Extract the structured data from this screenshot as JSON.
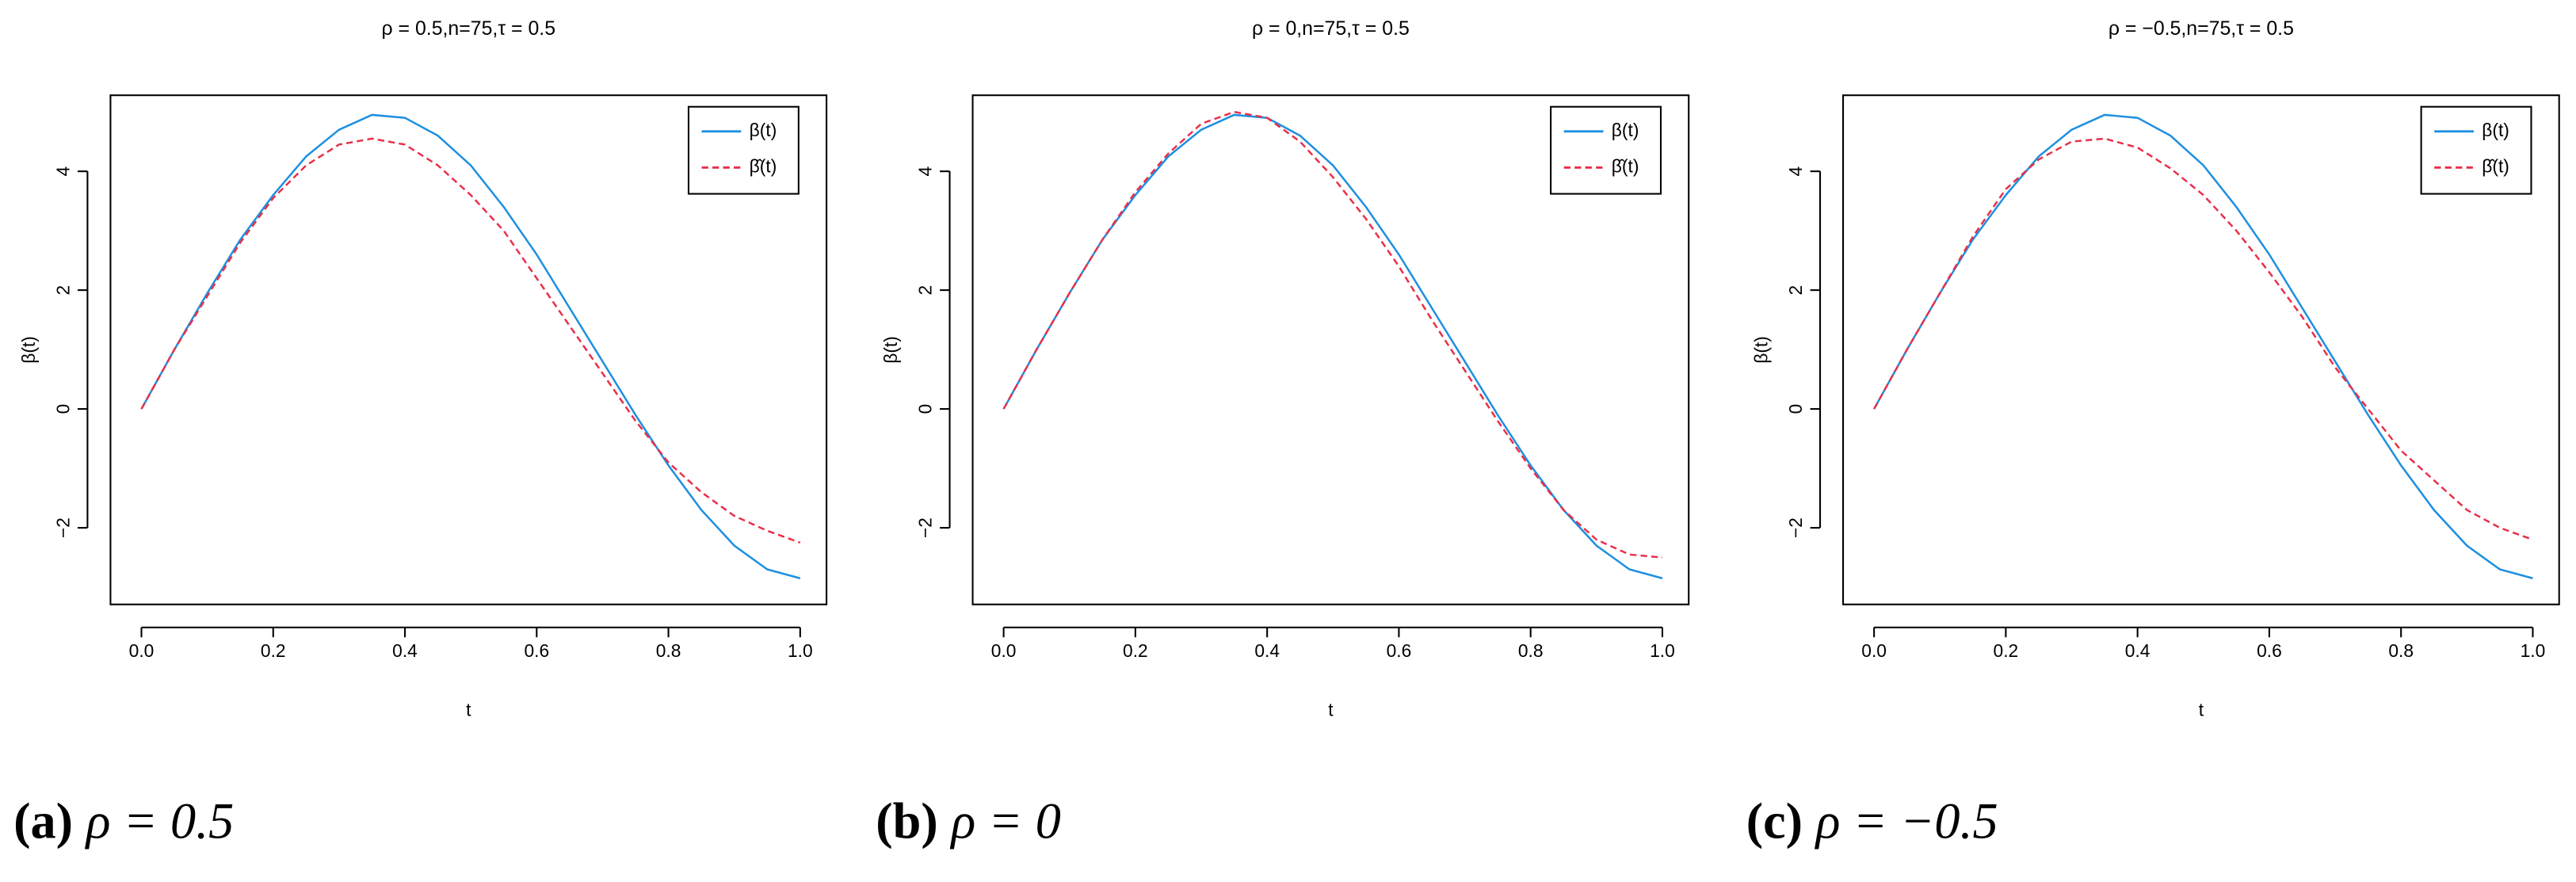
{
  "chart_data": [
    {
      "type": "line",
      "title": "ρ = 0.5,n=75,τ = 0.5",
      "xlabel": "t",
      "ylabel": "β(t)",
      "caption_label": "(a)",
      "caption": "ρ = 0.5",
      "x": [
        0,
        0.05,
        0.1,
        0.15,
        0.2,
        0.25,
        0.3,
        0.35,
        0.4,
        0.45,
        0.5,
        0.55,
        0.6,
        0.65,
        0.7,
        0.75,
        0.8,
        0.85,
        0.9,
        0.95,
        1.0
      ],
      "series": [
        {
          "name": "β(t)",
          "color": "#1e8fe0",
          "linestyle": "solid",
          "values": [
            0,
            1.0,
            1.95,
            2.85,
            3.6,
            4.25,
            4.7,
            4.95,
            4.9,
            4.6,
            4.1,
            3.4,
            2.6,
            1.7,
            0.8,
            -0.1,
            -0.95,
            -1.7,
            -2.3,
            -2.7,
            -2.85
          ]
        },
        {
          "name": "β̂(t)",
          "color": "#e8304a",
          "linestyle": "dashed",
          "values": [
            0,
            1.0,
            1.9,
            2.8,
            3.55,
            4.1,
            4.45,
            4.55,
            4.45,
            4.1,
            3.6,
            3.0,
            2.2,
            1.4,
            0.6,
            -0.2,
            -0.9,
            -1.4,
            -1.8,
            -2.05,
            -2.25
          ]
        }
      ],
      "xlim": [
        -0.047,
        1.04
      ],
      "ylim": [
        -3.29,
        5.28
      ],
      "xticks": [
        {
          "value": 0,
          "label": "0.0"
        },
        {
          "value": 0.2,
          "label": "0.2"
        },
        {
          "value": 0.4,
          "label": "0.4"
        },
        {
          "value": 0.6,
          "label": "0.6"
        },
        {
          "value": 0.8,
          "label": "0.8"
        },
        {
          "value": 1,
          "label": "1.0"
        }
      ],
      "yticks": [
        {
          "value": -2,
          "label": "−2"
        },
        0,
        2,
        4
      ],
      "legend": "upper right"
    },
    {
      "type": "line",
      "title": "ρ = 0,n=75,τ = 0.5",
      "xlabel": "t",
      "ylabel": "β(t)",
      "caption_label": "(b)",
      "caption": "ρ = 0",
      "x": [
        0,
        0.05,
        0.1,
        0.15,
        0.2,
        0.25,
        0.3,
        0.35,
        0.4,
        0.45,
        0.5,
        0.55,
        0.6,
        0.65,
        0.7,
        0.75,
        0.8,
        0.85,
        0.9,
        0.95,
        1.0
      ],
      "series": [
        {
          "name": "β(t)",
          "color": "#1e8fe0",
          "linestyle": "solid",
          "values": [
            0,
            1.0,
            1.95,
            2.85,
            3.6,
            4.25,
            4.7,
            4.95,
            4.9,
            4.6,
            4.1,
            3.4,
            2.6,
            1.7,
            0.8,
            -0.1,
            -0.95,
            -1.7,
            -2.3,
            -2.7,
            -2.85
          ]
        },
        {
          "name": "β̂(t)",
          "color": "#e8304a",
          "linestyle": "dashed",
          "values": [
            0,
            1.0,
            1.95,
            2.85,
            3.65,
            4.3,
            4.8,
            5.0,
            4.9,
            4.5,
            3.9,
            3.2,
            2.4,
            1.5,
            0.65,
            -0.2,
            -1.0,
            -1.7,
            -2.2,
            -2.45,
            -2.5
          ]
        }
      ],
      "xlim": [
        -0.047,
        1.04
      ],
      "ylim": [
        -3.29,
        5.28
      ],
      "xticks": [
        {
          "value": 0,
          "label": "0.0"
        },
        {
          "value": 0.2,
          "label": "0.2"
        },
        {
          "value": 0.4,
          "label": "0.4"
        },
        {
          "value": 0.6,
          "label": "0.6"
        },
        {
          "value": 0.8,
          "label": "0.8"
        },
        {
          "value": 1,
          "label": "1.0"
        }
      ],
      "yticks": [
        {
          "value": -2,
          "label": "−2"
        },
        0,
        2,
        4
      ],
      "legend": "upper right"
    },
    {
      "type": "line",
      "title": "ρ = −0.5,n=75,τ = 0.5",
      "xlabel": "t",
      "ylabel": "β(t)",
      "caption_label": "(c)",
      "caption": "ρ = −0.5",
      "x": [
        0,
        0.05,
        0.1,
        0.15,
        0.2,
        0.25,
        0.3,
        0.35,
        0.4,
        0.45,
        0.5,
        0.55,
        0.6,
        0.65,
        0.7,
        0.75,
        0.8,
        0.85,
        0.9,
        0.95,
        1.0
      ],
      "series": [
        {
          "name": "β(t)",
          "color": "#1e8fe0",
          "linestyle": "solid",
          "values": [
            0,
            1.0,
            1.95,
            2.85,
            3.6,
            4.25,
            4.7,
            4.95,
            4.9,
            4.6,
            4.1,
            3.4,
            2.6,
            1.7,
            0.8,
            -0.1,
            -0.95,
            -1.7,
            -2.3,
            -2.7,
            -2.85
          ]
        },
        {
          "name": "β̂(t)",
          "color": "#e8304a",
          "linestyle": "dashed",
          "values": [
            0,
            1.0,
            1.95,
            2.9,
            3.7,
            4.2,
            4.5,
            4.55,
            4.4,
            4.05,
            3.6,
            3.0,
            2.3,
            1.55,
            0.7,
            0.0,
            -0.7,
            -1.2,
            -1.7,
            -2.0,
            -2.2
          ]
        }
      ],
      "xlim": [
        -0.047,
        1.04
      ],
      "ylim": [
        -3.29,
        5.28
      ],
      "xticks": [
        {
          "value": 0,
          "label": "0.0"
        },
        {
          "value": 0.2,
          "label": "0.2"
        },
        {
          "value": 0.4,
          "label": "0.4"
        },
        {
          "value": 0.6,
          "label": "0.6"
        },
        {
          "value": 0.8,
          "label": "0.8"
        },
        {
          "value": 1,
          "label": "1.0"
        }
      ],
      "yticks": [
        {
          "value": -2,
          "label": "−2"
        },
        0,
        2,
        4
      ],
      "legend": "upper right"
    }
  ]
}
